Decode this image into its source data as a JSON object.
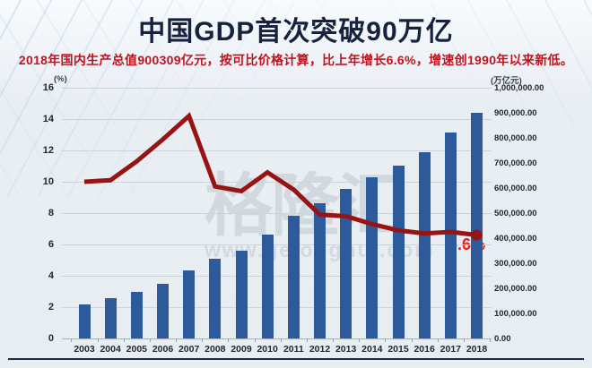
{
  "header": {
    "title": "中国GDP首次突破90万亿",
    "subtitle": "2018年国内生产总值900309亿元，按可比价格计算，比上年增长6.6%，增速创1990年以来新低。"
  },
  "watermark": {
    "brand": "格隆汇",
    "url": "www.gelonghui.com"
  },
  "colors": {
    "title": "#16223e",
    "subtitle_red": "#c1121d",
    "bar_blue": "#2d5a9b",
    "line_dark_red": "#981414",
    "annotation_red": "#e32119",
    "gridline": "#cdd3da",
    "divider_navy": "#1e2b47"
  },
  "chart_data": {
    "type": "bar",
    "subtype": "combo-bar-line",
    "title": "中国GDP首次突破90万亿",
    "categories": [
      "2003",
      "2004",
      "2005",
      "2006",
      "2007",
      "2008",
      "2009",
      "2010",
      "2011",
      "2012",
      "2013",
      "2014",
      "2015",
      "2016",
      "2017",
      "2018"
    ],
    "series": [
      {
        "name": "gdp-total",
        "type": "bar",
        "axis": "right",
        "color": "#2d5a9b",
        "values": [
          137422,
          161840,
          187319,
          219439,
          270232,
          319516,
          349081,
          413030,
          489301,
          540367,
          595244,
          643974,
          689052,
          743586,
          820754,
          900309
        ]
      },
      {
        "name": "gdp-growth",
        "type": "line",
        "axis": "left",
        "color": "#981414",
        "values": [
          10.0,
          10.1,
          11.3,
          12.7,
          14.2,
          9.7,
          9.4,
          10.6,
          9.5,
          7.9,
          7.8,
          7.3,
          6.9,
          6.7,
          6.8,
          6.6
        ]
      }
    ],
    "left_axis": {
      "label": "(%)",
      "min": 0,
      "max": 16,
      "ticks": [
        16,
        14,
        12,
        10,
        8,
        6,
        4,
        2,
        0
      ]
    },
    "right_axis": {
      "label": "(万亿元)",
      "min": 0,
      "max": 1000000,
      "ticks": [
        "1,000,000.00",
        "900,000.00",
        "800,000.00",
        "700,000.00",
        "600,000.00",
        "500,000.00",
        "400,000.00",
        "300,000.00",
        "200,000.00",
        "100,000.00",
        "0.00"
      ]
    },
    "annotation": {
      "text": "6.6%",
      "color": "#e32119"
    },
    "grid": true,
    "legend": false
  }
}
